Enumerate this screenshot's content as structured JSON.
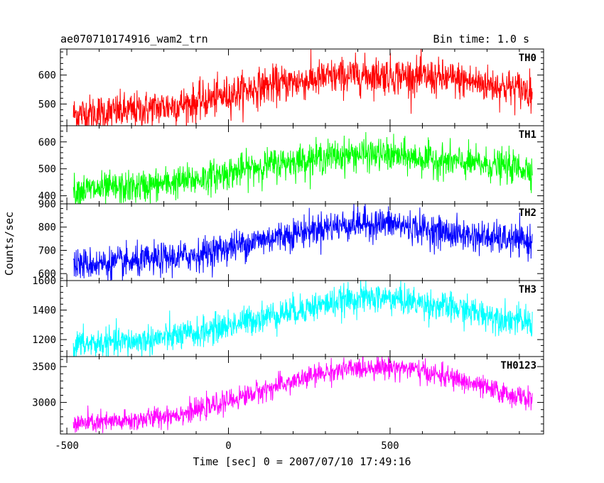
{
  "header": {
    "title": "ae070710174916_wam2_trn",
    "bin_time": "Bin time: 1.0 s"
  },
  "chart_data": {
    "type": "line",
    "xlabel": "Time [sec] 0 = 2007/07/10 17:49:16",
    "ylabel": "Counts/sec",
    "xlim": [
      -520,
      975
    ],
    "x_ticks": [
      -500,
      0,
      500
    ],
    "x_range": [
      -480,
      940
    ],
    "series": [
      {
        "name": "TH0",
        "color": "#ff0000",
        "ylim": [
          425,
          690
        ],
        "y_ticks": [
          500,
          600
        ],
        "noise": 32,
        "trend": [
          [
            -480,
            465
          ],
          [
            -300,
            475
          ],
          [
            -100,
            505
          ],
          [
            100,
            560
          ],
          [
            300,
            590
          ],
          [
            400,
            600
          ],
          [
            500,
            600
          ],
          [
            700,
            585
          ],
          [
            940,
            545
          ]
        ]
      },
      {
        "name": "TH1",
        "color": "#00ff00",
        "ylim": [
          370,
          660
        ],
        "y_ticks": [
          400,
          500,
          600
        ],
        "noise": 30,
        "trend": [
          [
            -480,
            420
          ],
          [
            -300,
            430
          ],
          [
            -100,
            460
          ],
          [
            100,
            510
          ],
          [
            300,
            545
          ],
          [
            400,
            555
          ],
          [
            500,
            550
          ],
          [
            700,
            525
          ],
          [
            940,
            500
          ]
        ]
      },
      {
        "name": "TH2",
        "color": "#0000ff",
        "ylim": [
          570,
          900
        ],
        "y_ticks": [
          600,
          700,
          800,
          900
        ],
        "noise": 34,
        "trend": [
          [
            -480,
            640
          ],
          [
            -300,
            648
          ],
          [
            -100,
            680
          ],
          [
            100,
            745
          ],
          [
            300,
            800
          ],
          [
            400,
            815
          ],
          [
            500,
            815
          ],
          [
            700,
            770
          ],
          [
            940,
            735
          ]
        ]
      },
      {
        "name": "TH3",
        "color": "#00ffff",
        "ylim": [
          1085,
          1600
        ],
        "y_ticks": [
          1200,
          1400,
          1600
        ],
        "noise": 50,
        "trend": [
          [
            -480,
            1165
          ],
          [
            -300,
            1185
          ],
          [
            -100,
            1240
          ],
          [
            100,
            1350
          ],
          [
            300,
            1440
          ],
          [
            400,
            1480
          ],
          [
            500,
            1480
          ],
          [
            700,
            1410
          ],
          [
            940,
            1310
          ]
        ]
      },
      {
        "name": "TH0123",
        "color": "#ff00ff",
        "ylim": [
          2560,
          3640
        ],
        "y_ticks": [
          3000,
          3500
        ],
        "noise": 75,
        "trend": [
          [
            -480,
            2700
          ],
          [
            -300,
            2740
          ],
          [
            -100,
            2880
          ],
          [
            100,
            3160
          ],
          [
            300,
            3420
          ],
          [
            450,
            3500
          ],
          [
            550,
            3480
          ],
          [
            700,
            3330
          ],
          [
            850,
            3130
          ],
          [
            940,
            3040
          ]
        ]
      }
    ],
    "grid": false,
    "legend": "none"
  }
}
